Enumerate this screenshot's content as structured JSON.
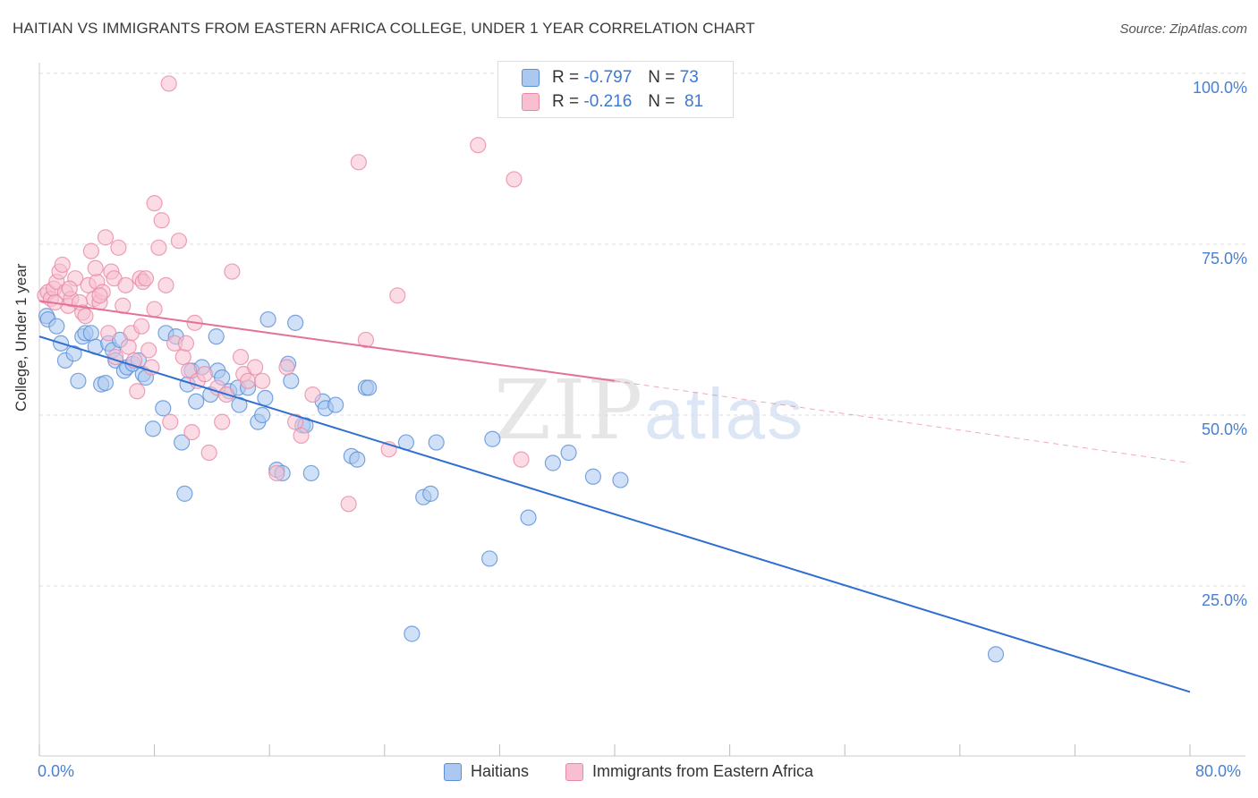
{
  "title": "HAITIAN VS IMMIGRANTS FROM EASTERN AFRICA COLLEGE, UNDER 1 YEAR CORRELATION CHART",
  "source": "Source: ZipAtlas.com",
  "watermark": {
    "zip": "ZIP",
    "atlas": "atlas"
  },
  "legend": {
    "series1": {
      "r_label": "R =",
      "r_value": "-0.797",
      "n_label": "N =",
      "n_value": "73"
    },
    "series2": {
      "r_label": "R =",
      "r_value": "-0.216",
      "n_label": "N =",
      "n_value": "81"
    }
  },
  "colors": {
    "blue_fill": "#aac8f0",
    "blue_stroke": "#5b8fd8",
    "blue_line": "#2f6fd0",
    "pink_fill": "#f7bfd0",
    "pink_stroke": "#e889a8",
    "pink_line": "#e3719a",
    "grid": "#dddddd",
    "tick_text": "#4a7fcf"
  },
  "chart_data": {
    "type": "scatter",
    "title": "HAITIAN VS IMMIGRANTS FROM EASTERN AFRICA COLLEGE, UNDER 1 YEAR CORRELATION CHART",
    "xlabel": "",
    "ylabel": "College, Under 1 year",
    "xlim": [
      0,
      80
    ],
    "ylim": [
      0,
      105
    ],
    "x_tick_labels": [
      "0.0%",
      "80.0%"
    ],
    "y_tick_labels": [
      "25.0%",
      "50.0%",
      "75.0%",
      "100.0%"
    ],
    "y_ticks": [
      25,
      50,
      75,
      100
    ],
    "grid": true,
    "legend_position": "top-center",
    "series": [
      {
        "name": "Haitians",
        "color": "#5b8fd8",
        "trend": {
          "x": [
            0,
            80
          ],
          "y": [
            61.5,
            9.5
          ],
          "dashed_from": null
        },
        "points": [
          [
            0.5,
            64.5
          ],
          [
            0.6,
            64
          ],
          [
            1.2,
            63
          ],
          [
            1.5,
            60.5
          ],
          [
            1.8,
            58
          ],
          [
            2.4,
            59
          ],
          [
            2.7,
            55
          ],
          [
            3.0,
            61.5
          ],
          [
            3.2,
            62
          ],
          [
            3.6,
            62
          ],
          [
            3.9,
            60
          ],
          [
            4.3,
            54.5
          ],
          [
            4.6,
            54.7
          ],
          [
            4.8,
            60.5
          ],
          [
            5.1,
            59.5
          ],
          [
            5.3,
            58
          ],
          [
            5.6,
            61
          ],
          [
            5.9,
            56.5
          ],
          [
            6.1,
            57
          ],
          [
            6.5,
            57.5
          ],
          [
            6.9,
            58
          ],
          [
            7.2,
            56
          ],
          [
            7.4,
            55.5
          ],
          [
            7.9,
            48
          ],
          [
            8.6,
            51
          ],
          [
            8.8,
            62
          ],
          [
            9.5,
            61.5
          ],
          [
            9.9,
            46
          ],
          [
            10.1,
            38.5
          ],
          [
            10.3,
            54.5
          ],
          [
            10.6,
            56.5
          ],
          [
            10.9,
            52
          ],
          [
            11.3,
            57
          ],
          [
            11.9,
            53
          ],
          [
            12.3,
            61.5
          ],
          [
            12.4,
            56.5
          ],
          [
            12.7,
            55.5
          ],
          [
            13.2,
            53.5
          ],
          [
            13.8,
            54
          ],
          [
            13.9,
            51.5
          ],
          [
            14.5,
            54
          ],
          [
            15.2,
            49
          ],
          [
            15.5,
            50
          ],
          [
            15.7,
            52.5
          ],
          [
            15.9,
            64
          ],
          [
            16.5,
            42
          ],
          [
            16.9,
            41.5
          ],
          [
            17.3,
            57.5
          ],
          [
            17.5,
            55
          ],
          [
            17.8,
            63.5
          ],
          [
            18.3,
            48.5
          ],
          [
            18.5,
            48.5
          ],
          [
            18.9,
            41.5
          ],
          [
            19.7,
            52
          ],
          [
            19.9,
            51
          ],
          [
            20.6,
            51.5
          ],
          [
            21.7,
            44
          ],
          [
            22.1,
            43.5
          ],
          [
            22.7,
            54
          ],
          [
            22.9,
            54
          ],
          [
            25.5,
            46
          ],
          [
            26.7,
            38
          ],
          [
            27.2,
            38.5
          ],
          [
            27.6,
            46
          ],
          [
            31.3,
            29
          ],
          [
            31.5,
            46.5
          ],
          [
            34.0,
            35
          ],
          [
            35.7,
            43
          ],
          [
            36.8,
            44.5
          ],
          [
            38.5,
            41
          ],
          [
            40.4,
            40.5
          ],
          [
            66.5,
            15
          ],
          [
            25.9,
            18
          ]
        ]
      },
      {
        "name": "Immigrants from Eastern Africa",
        "color": "#e889a8",
        "trend": {
          "x": [
            0,
            40,
            80
          ],
          "y": [
            66.7,
            55,
            43
          ],
          "dashed_from": 40
        },
        "points": [
          [
            0.4,
            67.5
          ],
          [
            0.6,
            68
          ],
          [
            0.8,
            67
          ],
          [
            1.0,
            68.5
          ],
          [
            1.2,
            69.5
          ],
          [
            1.4,
            71
          ],
          [
            1.6,
            72
          ],
          [
            1.8,
            68
          ],
          [
            2.0,
            66
          ],
          [
            2.2,
            67
          ],
          [
            2.5,
            70
          ],
          [
            2.8,
            66.5
          ],
          [
            3.0,
            65
          ],
          [
            3.2,
            64.5
          ],
          [
            3.4,
            69
          ],
          [
            3.6,
            74
          ],
          [
            3.8,
            67
          ],
          [
            4.0,
            69.5
          ],
          [
            4.2,
            66.5
          ],
          [
            4.4,
            68
          ],
          [
            4.6,
            76
          ],
          [
            4.8,
            62
          ],
          [
            5.0,
            71
          ],
          [
            5.2,
            70
          ],
          [
            5.5,
            74.5
          ],
          [
            5.8,
            66
          ],
          [
            6.0,
            69
          ],
          [
            6.2,
            60
          ],
          [
            6.4,
            62
          ],
          [
            6.6,
            58
          ],
          [
            6.8,
            53.5
          ],
          [
            7.0,
            70
          ],
          [
            7.2,
            69.5
          ],
          [
            7.4,
            70
          ],
          [
            7.6,
            59.5
          ],
          [
            7.8,
            57
          ],
          [
            8.0,
            65.5
          ],
          [
            8.3,
            74.5
          ],
          [
            8.5,
            78.5
          ],
          [
            8.8,
            69
          ],
          [
            9.1,
            49
          ],
          [
            9.4,
            60.5
          ],
          [
            9.7,
            75.5
          ],
          [
            10.0,
            58.5
          ],
          [
            10.2,
            60.5
          ],
          [
            10.4,
            56.5
          ],
          [
            10.6,
            47.5
          ],
          [
            10.8,
            63.5
          ],
          [
            11.0,
            55
          ],
          [
            11.5,
            56
          ],
          [
            11.8,
            44.5
          ],
          [
            12.4,
            54
          ],
          [
            12.7,
            49
          ],
          [
            13.0,
            53
          ],
          [
            13.4,
            71
          ],
          [
            14.0,
            58.5
          ],
          [
            14.2,
            56
          ],
          [
            14.5,
            55
          ],
          [
            15.0,
            57
          ],
          [
            15.5,
            55
          ],
          [
            16.5,
            41.5
          ],
          [
            17.2,
            57
          ],
          [
            17.8,
            49
          ],
          [
            18.2,
            47
          ],
          [
            19.0,
            53
          ],
          [
            21.5,
            37
          ],
          [
            22.2,
            87
          ],
          [
            22.7,
            61
          ],
          [
            24.3,
            45
          ],
          [
            24.9,
            67.5
          ],
          [
            30.5,
            89.5
          ],
          [
            33.5,
            43.5
          ],
          [
            33.0,
            84.5
          ],
          [
            9.0,
            98.5
          ],
          [
            8.0,
            81
          ],
          [
            7.1,
            63
          ],
          [
            5.3,
            58.5
          ],
          [
            2.1,
            68.5
          ],
          [
            1.1,
            66.5
          ],
          [
            3.9,
            71.5
          ],
          [
            4.2,
            67.5
          ]
        ]
      }
    ]
  },
  "axis": {
    "y_label": "College, Under 1 year",
    "x_min_label": "0.0%",
    "x_max_label": "80.0%"
  },
  "legend_bottom": [
    {
      "label": "Haitians"
    },
    {
      "label": "Immigrants from Eastern Africa"
    }
  ]
}
